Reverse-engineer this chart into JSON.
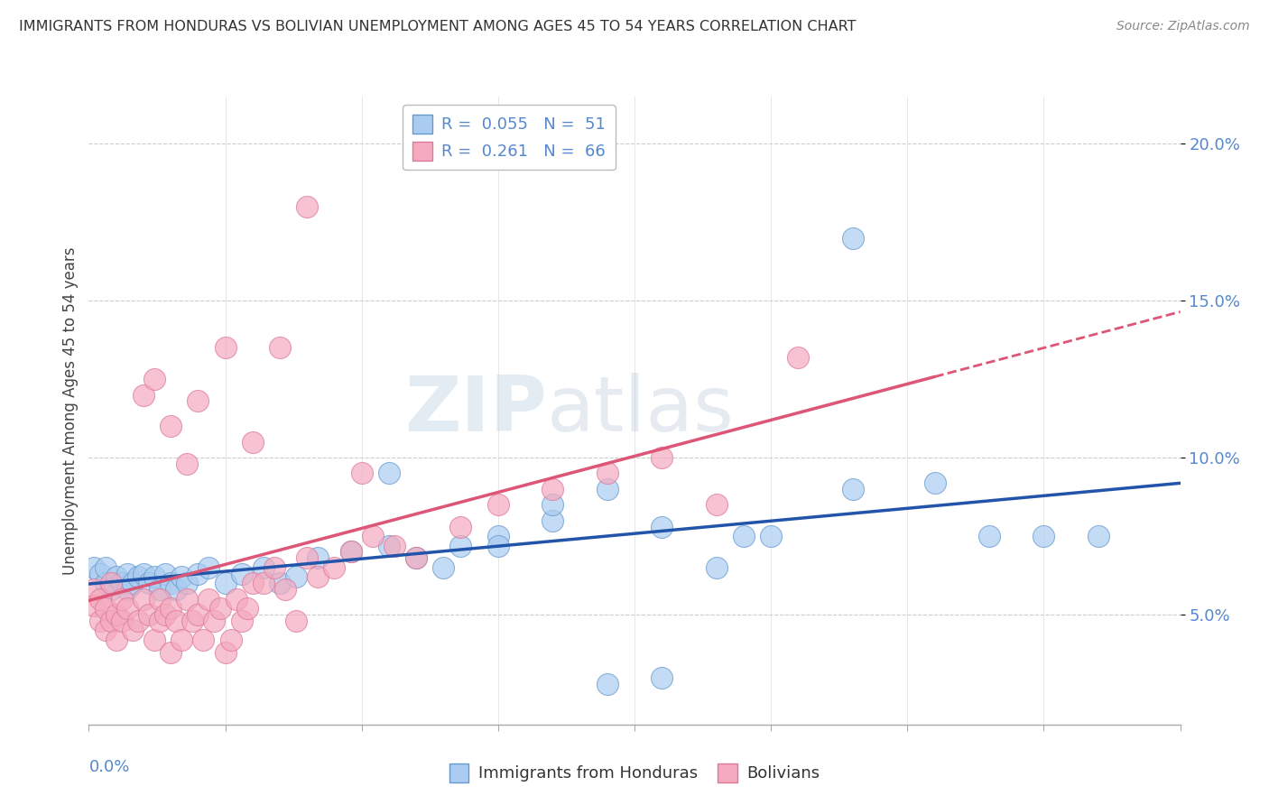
{
  "title": "IMMIGRANTS FROM HONDURAS VS BOLIVIAN UNEMPLOYMENT AMONG AGES 45 TO 54 YEARS CORRELATION CHART",
  "source": "Source: ZipAtlas.com",
  "ylabel": "Unemployment Among Ages 45 to 54 years",
  "ytick_labels": [
    "5.0%",
    "10.0%",
    "15.0%",
    "20.0%"
  ],
  "ytick_values": [
    0.05,
    0.1,
    0.15,
    0.2
  ],
  "xlim": [
    0.0,
    0.2
  ],
  "ylim": [
    0.015,
    0.215
  ],
  "legend1_r": "0.055",
  "legend1_n": "51",
  "legend2_r": "0.261",
  "legend2_n": "66",
  "color_blue": "#aaccf0",
  "color_blue_edge": "#6699cc",
  "color_pink": "#f5aabf",
  "color_pink_edge": "#dd7799",
  "color_line_blue": "#2255aa",
  "color_line_pink": "#dd5577",
  "watermark_zip": "ZIP",
  "watermark_atlas": "atlas",
  "blue_x": [
    0.001,
    0.002,
    0.003,
    0.003,
    0.004,
    0.005,
    0.006,
    0.007,
    0.007,
    0.008,
    0.009,
    0.01,
    0.011,
    0.012,
    0.013,
    0.014,
    0.015,
    0.016,
    0.017,
    0.018,
    0.02,
    0.022,
    0.025,
    0.028,
    0.032,
    0.035,
    0.038,
    0.042,
    0.048,
    0.055,
    0.06,
    0.068,
    0.075,
    0.085,
    0.095,
    0.105,
    0.115,
    0.125,
    0.14,
    0.155,
    0.165,
    0.175,
    0.185,
    0.14,
    0.055,
    0.065,
    0.075,
    0.085,
    0.095,
    0.105,
    0.12
  ],
  "blue_y": [
    0.065,
    0.063,
    0.06,
    0.065,
    0.058,
    0.062,
    0.06,
    0.063,
    0.058,
    0.06,
    0.062,
    0.063,
    0.06,
    0.062,
    0.058,
    0.063,
    0.06,
    0.058,
    0.062,
    0.06,
    0.063,
    0.065,
    0.06,
    0.063,
    0.065,
    0.06,
    0.062,
    0.068,
    0.07,
    0.072,
    0.068,
    0.072,
    0.075,
    0.08,
    0.09,
    0.078,
    0.065,
    0.075,
    0.17,
    0.092,
    0.075,
    0.075,
    0.075,
    0.09,
    0.095,
    0.065,
    0.072,
    0.085,
    0.028,
    0.03,
    0.075
  ],
  "pink_x": [
    0.001,
    0.001,
    0.002,
    0.002,
    0.003,
    0.003,
    0.004,
    0.004,
    0.005,
    0.005,
    0.006,
    0.006,
    0.007,
    0.008,
    0.009,
    0.01,
    0.011,
    0.012,
    0.013,
    0.013,
    0.014,
    0.015,
    0.015,
    0.016,
    0.017,
    0.018,
    0.019,
    0.02,
    0.021,
    0.022,
    0.023,
    0.024,
    0.025,
    0.026,
    0.027,
    0.028,
    0.029,
    0.03,
    0.032,
    0.034,
    0.036,
    0.038,
    0.04,
    0.042,
    0.045,
    0.048,
    0.052,
    0.056,
    0.06,
    0.068,
    0.075,
    0.085,
    0.095,
    0.105,
    0.115,
    0.13,
    0.01,
    0.012,
    0.015,
    0.018,
    0.02,
    0.025,
    0.03,
    0.035,
    0.04,
    0.05
  ],
  "pink_y": [
    0.058,
    0.053,
    0.055,
    0.048,
    0.052,
    0.045,
    0.048,
    0.06,
    0.05,
    0.042,
    0.055,
    0.048,
    0.052,
    0.045,
    0.048,
    0.055,
    0.05,
    0.042,
    0.048,
    0.055,
    0.05,
    0.038,
    0.052,
    0.048,
    0.042,
    0.055,
    0.048,
    0.05,
    0.042,
    0.055,
    0.048,
    0.052,
    0.038,
    0.042,
    0.055,
    0.048,
    0.052,
    0.06,
    0.06,
    0.065,
    0.058,
    0.048,
    0.068,
    0.062,
    0.065,
    0.07,
    0.075,
    0.072,
    0.068,
    0.078,
    0.085,
    0.09,
    0.095,
    0.1,
    0.085,
    0.132,
    0.12,
    0.125,
    0.11,
    0.098,
    0.118,
    0.135,
    0.105,
    0.135,
    0.18,
    0.095
  ]
}
